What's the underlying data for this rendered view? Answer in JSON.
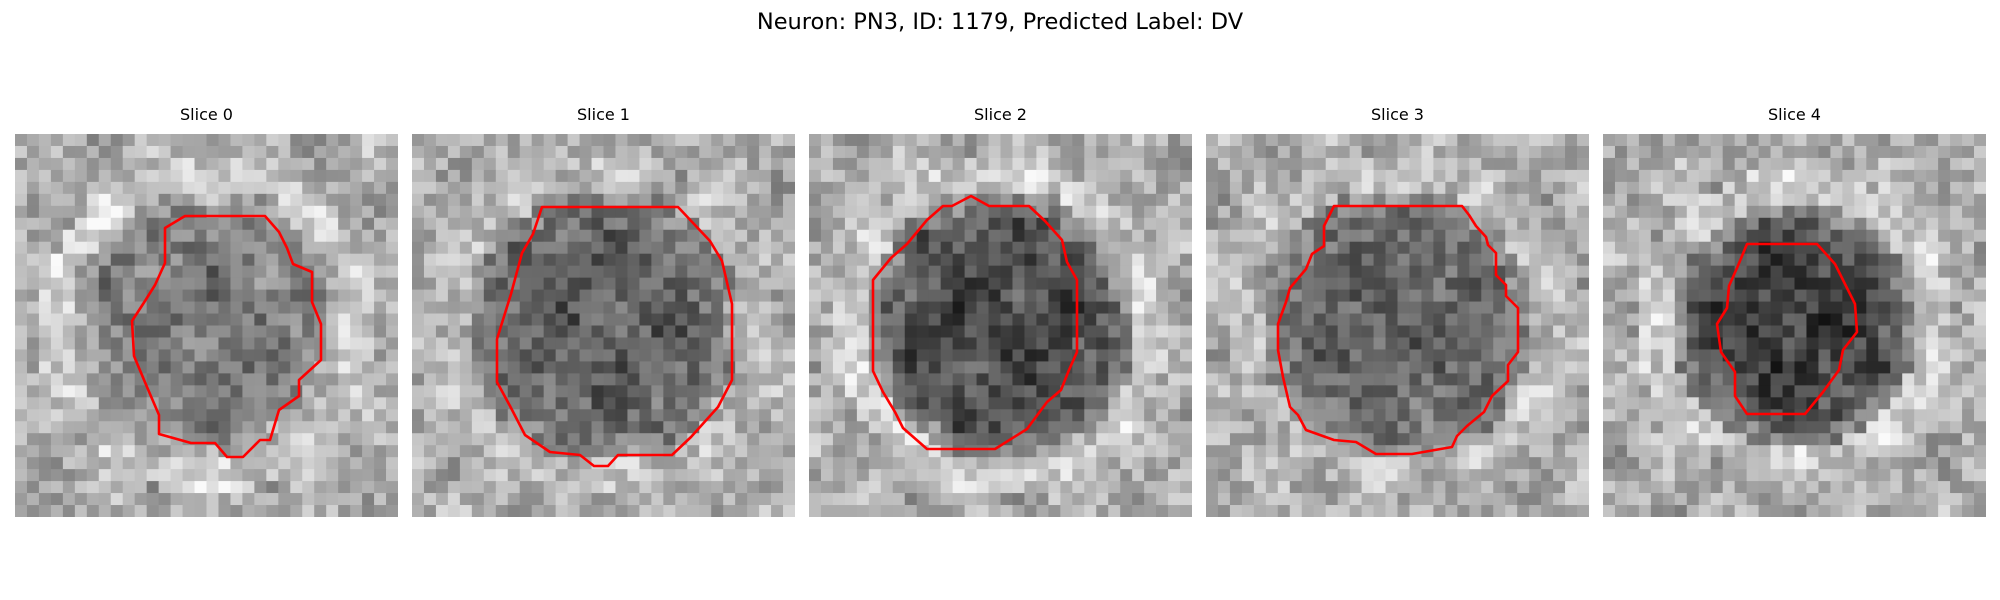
{
  "figure": {
    "title": "Neuron: PN3, ID: 1179, Predicted Label: DV"
  },
  "panels": [
    {
      "title": "Slice 0",
      "contour_color": "#ff0000",
      "cell_darkness": 0.42,
      "seed": 11
    },
    {
      "title": "Slice 1",
      "contour_color": "#ff0000",
      "cell_darkness": 0.62,
      "seed": 23
    },
    {
      "title": "Slice 2",
      "contour_color": "#ff0000",
      "cell_darkness": 0.8,
      "seed": 37
    },
    {
      "title": "Slice 3",
      "contour_color": "#ff0000",
      "cell_darkness": 0.6,
      "seed": 51
    },
    {
      "title": "Slice 4",
      "contour_color": "#ff0000",
      "cell_darkness": 0.88,
      "seed": 67
    }
  ]
}
